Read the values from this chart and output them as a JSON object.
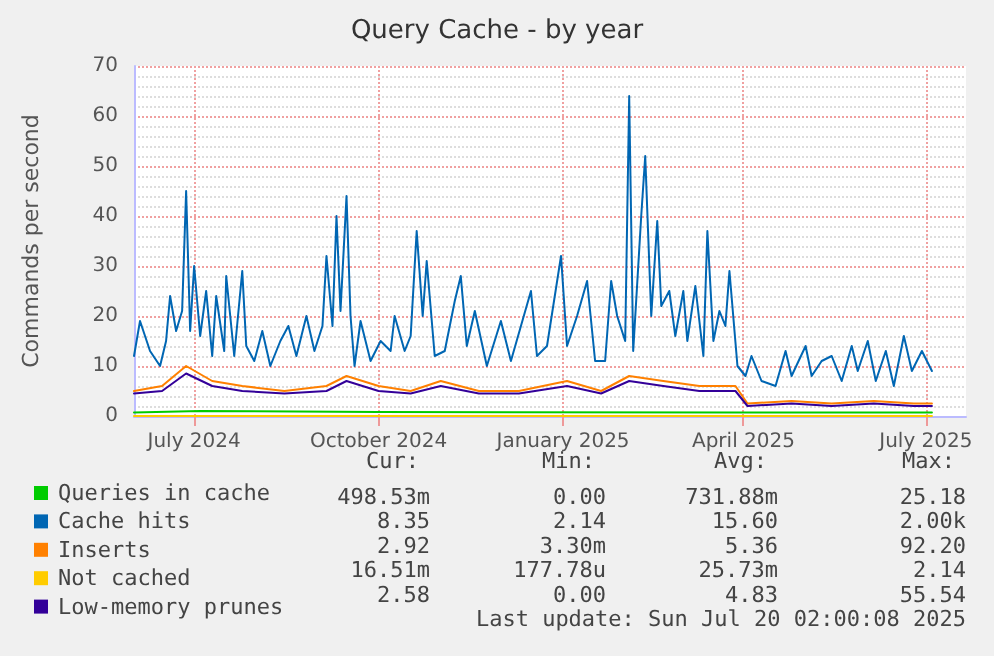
{
  "chart_data": {
    "type": "line",
    "title": "Query Cache - by year",
    "ylabel": "Commands per second",
    "xlim": [
      "2024-06-01",
      "2025-07-21"
    ],
    "xticks": [
      {
        "value": "2024-07-01",
        "label": "July 2024"
      },
      {
        "value": "2024-10-01",
        "label": "October 2024"
      },
      {
        "value": "2025-01-01",
        "label": "January 2025"
      },
      {
        "value": "2025-04-01",
        "label": "April 2025"
      },
      {
        "value": "2025-07-01",
        "label": "July 2025"
      }
    ],
    "ylim": [
      0,
      70
    ],
    "yticks": [
      0,
      10,
      20,
      30,
      40,
      50,
      60,
      70
    ],
    "grid": true,
    "legend": "bottom",
    "marker": "none",
    "line_style": "solid",
    "series": [
      {
        "name": "Queries in cache",
        "color": "#00cc00",
        "x": [
          "2024-06-01",
          "2024-07-04",
          "2024-10-01",
          "2025-04-01",
          "2025-07-04"
        ],
        "values": [
          0.7,
          1,
          0.8,
          0.7,
          0.7
        ]
      },
      {
        "name": "Cache hits",
        "color": "#0066b3",
        "x": [
          "2024-06-01",
          "2024-06-04",
          "2024-06-09",
          "2024-06-14",
          "2024-06-17",
          "2024-06-19",
          "2024-06-22",
          "2024-06-25",
          "2024-06-27",
          "2024-06-29",
          "2024-07-01",
          "2024-07-04",
          "2024-07-07",
          "2024-07-10",
          "2024-07-12",
          "2024-07-16",
          "2024-07-17",
          "2024-07-21",
          "2024-07-25",
          "2024-07-27",
          "2024-07-31",
          "2024-08-04",
          "2024-08-08",
          "2024-08-13",
          "2024-08-17",
          "2024-08-21",
          "2024-08-26",
          "2024-08-30",
          "2024-09-03",
          "2024-09-05",
          "2024-09-08",
          "2024-09-10",
          "2024-09-12",
          "2024-09-15",
          "2024-09-17",
          "2024-09-19",
          "2024-09-22",
          "2024-09-27",
          "2024-10-02",
          "2024-10-07",
          "2024-10-09",
          "2024-10-14",
          "2024-10-17",
          "2024-10-20",
          "2024-10-23",
          "2024-10-25",
          "2024-10-29",
          "2024-11-03",
          "2024-11-08",
          "2024-11-11",
          "2024-11-14",
          "2024-11-18",
          "2024-11-24",
          "2024-12-01",
          "2024-12-06",
          "2024-12-11",
          "2024-12-16",
          "2024-12-19",
          "2024-12-24",
          "2024-12-31",
          "2025-01-03",
          "2025-01-08",
          "2025-01-13",
          "2025-01-17",
          "2025-01-22",
          "2025-01-25",
          "2025-01-28",
          "2025-02-01",
          "2025-02-03",
          "2025-02-05",
          "2025-02-09",
          "2025-02-11",
          "2025-02-14",
          "2025-02-17",
          "2025-02-19",
          "2025-02-23",
          "2025-02-26",
          "2025-03-02",
          "2025-03-04",
          "2025-03-08",
          "2025-03-12",
          "2025-03-14",
          "2025-03-17",
          "2025-03-20",
          "2025-03-23",
          "2025-03-25",
          "2025-03-29",
          "2025-04-02",
          "2025-04-05",
          "2025-04-10",
          "2025-04-17",
          "2025-04-22",
          "2025-04-25",
          "2025-05-02",
          "2025-05-05",
          "2025-05-10",
          "2025-05-15",
          "2025-05-20",
          "2025-05-25",
          "2025-05-28",
          "2025-06-02",
          "2025-06-06",
          "2025-06-11",
          "2025-06-15",
          "2025-06-20",
          "2025-06-24",
          "2025-06-29",
          "2025-07-04"
        ],
        "values": [
          12,
          19,
          13,
          10,
          15,
          24,
          17,
          21,
          45,
          17,
          30,
          16,
          25,
          12,
          24,
          13,
          28,
          12,
          29,
          14,
          11,
          17,
          10,
          15,
          18,
          12,
          20,
          13,
          18,
          32,
          18,
          40,
          21,
          44,
          20,
          10,
          19,
          11,
          15,
          13,
          20,
          13,
          16,
          37,
          20,
          31,
          12,
          13,
          23,
          28,
          14,
          21,
          10,
          19,
          11,
          18,
          25,
          12,
          14,
          32,
          14,
          20,
          27,
          11,
          11,
          27,
          20,
          15,
          64,
          13,
          40,
          52,
          20,
          39,
          22,
          25,
          16,
          25,
          15,
          26,
          12,
          37,
          15,
          21,
          18,
          29,
          10,
          8,
          12,
          7,
          6,
          13,
          8,
          14,
          8,
          11,
          12,
          7,
          14,
          9,
          15,
          7,
          13,
          6,
          16,
          9,
          13,
          9
        ]
      },
      {
        "name": "Inserts",
        "color": "#ff8000",
        "x": [
          "2024-06-01",
          "2024-06-15",
          "2024-06-27",
          "2024-07-10",
          "2024-07-25",
          "2024-08-15",
          "2024-09-05",
          "2024-09-15",
          "2024-10-01",
          "2024-10-17",
          "2024-11-01",
          "2024-11-20",
          "2024-12-10",
          "2025-01-03",
          "2025-01-20",
          "2025-02-03",
          "2025-02-20",
          "2025-03-10",
          "2025-03-28",
          "2025-04-03",
          "2025-04-25",
          "2025-05-15",
          "2025-06-05",
          "2025-06-25",
          "2025-07-04"
        ],
        "values": [
          5,
          6,
          10,
          7,
          6,
          5,
          6,
          8,
          6,
          5,
          7,
          5,
          5,
          7,
          5,
          8,
          7,
          6,
          6,
          2.5,
          3,
          2.5,
          3,
          2.5,
          2.5
        ]
      },
      {
        "name": "Not cached",
        "color": "#ffcc00",
        "x": [
          "2024-06-01",
          "2025-07-04"
        ],
        "values": [
          0,
          0
        ]
      },
      {
        "name": "Low-memory prunes",
        "color": "#330099",
        "x": [
          "2024-06-01",
          "2024-06-15",
          "2024-06-27",
          "2024-07-10",
          "2024-07-25",
          "2024-08-15",
          "2024-09-05",
          "2024-09-15",
          "2024-10-01",
          "2024-10-17",
          "2024-11-01",
          "2024-11-20",
          "2024-12-10",
          "2025-01-03",
          "2025-01-20",
          "2025-02-03",
          "2025-02-20",
          "2025-03-10",
          "2025-03-28",
          "2025-04-03",
          "2025-04-25",
          "2025-05-15",
          "2025-06-05",
          "2025-06-25",
          "2025-07-04"
        ],
        "values": [
          4.5,
          5,
          8.5,
          6,
          5,
          4.5,
          5,
          7,
          5,
          4.5,
          6,
          4.5,
          4.5,
          6,
          4.5,
          7,
          6,
          5,
          5,
          2,
          2.5,
          2,
          2.5,
          2,
          2
        ]
      }
    ],
    "annotations": [
      "Cur:",
      "Min:",
      "Avg:",
      "Max:",
      "498.53m",
      "0.00",
      "731.88m",
      "25.18",
      "8.35",
      "2.14",
      "15.60",
      "2.00k",
      "2.92",
      "3.30m",
      "5.36",
      "92.20",
      "16.51m",
      "177.78u",
      "25.73m",
      "2.14",
      "2.58",
      "0.00",
      "4.83",
      "55.54",
      "Last update: Sun Jul 20 02:00:08 2025"
    ]
  }
}
